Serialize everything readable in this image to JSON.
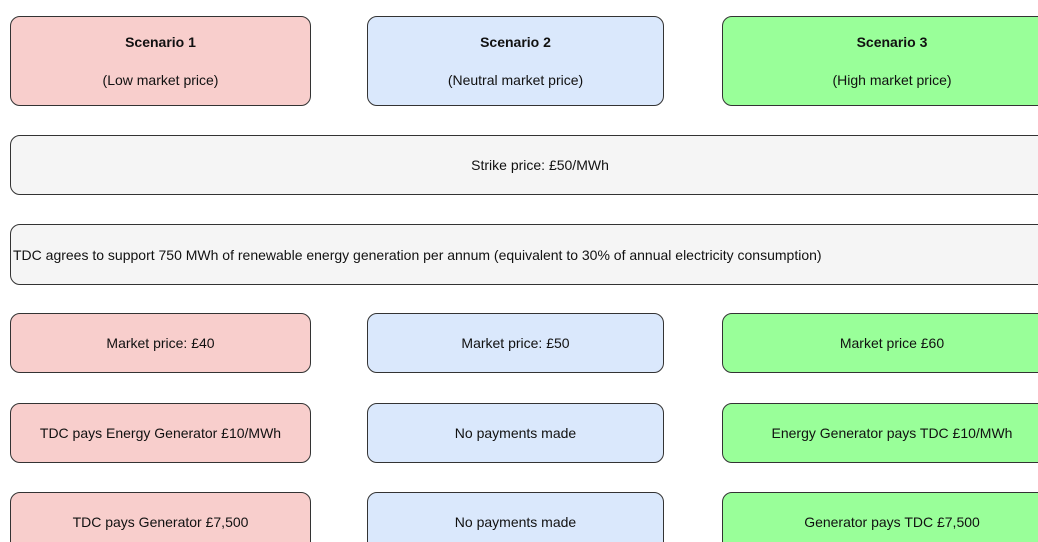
{
  "scenarios": [
    {
      "title": "Scenario 1",
      "subtitle": "(Low market price)",
      "market_price": "Market price: £40",
      "payment_rate": "TDC pays Energy Generator £10/MWh",
      "payment_total": "TDC pays Generator £7,500"
    },
    {
      "title": "Scenario 2",
      "subtitle": "(Neutral market price)",
      "market_price": "Market price: £50",
      "payment_rate": "No payments made",
      "payment_total": "No payments made"
    },
    {
      "title": "Scenario 3",
      "subtitle": "(High market price)",
      "market_price": "Market price £60",
      "payment_rate": "Energy Generator pays TDC £10/MWh",
      "payment_total": "Generator pays TDC £7,500"
    }
  ],
  "strike_price": "Strike price: £50/MWh",
  "agreement": "TDC agrees to support 750 MWh of renewable energy generation per annum (equivalent to 30% of annual electricity consumption)"
}
